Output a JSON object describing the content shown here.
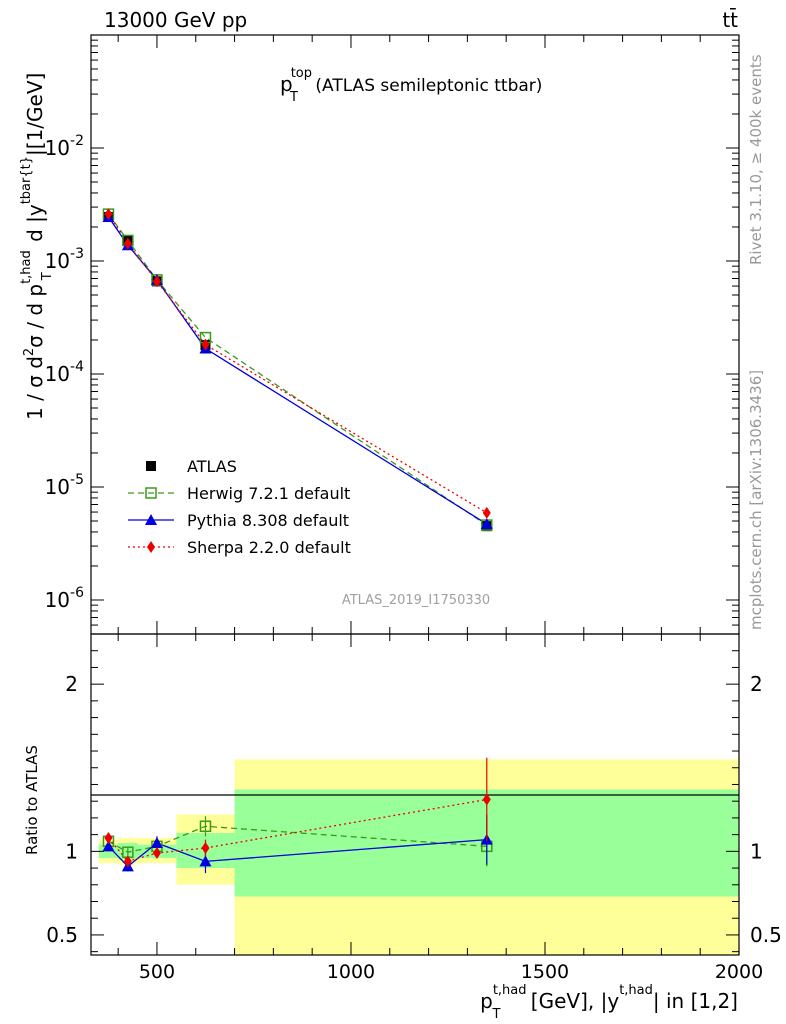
{
  "header": {
    "left": "13000 GeV pp",
    "right": "tt̄"
  },
  "side_labels": {
    "rivet": "Rivet 3.1.10, ≥ 400k events",
    "mcplots": "mcplots.cern.ch [arXiv:1306.3436]"
  },
  "analysis_id": "ATLAS_2019_I1750330",
  "chart_data": [
    {
      "type": "scatter",
      "panel": "main",
      "title": "p_T^top (ATLAS semileptonic ttbar)",
      "title_parts": {
        "base": "p",
        "sub": "T",
        "sup": "top",
        "rest": " (ATLAS semileptonic ttbar)"
      },
      "ylabel": "1 / σ d²σ / d p_T^{t,had} d |y^{tbar{t}}|[1/GeV]",
      "yscale": "log",
      "ylim": [
        5e-07,
        0.1
      ],
      "yticks": [
        {
          "value": 0.01,
          "base": "10",
          "exp": "-2"
        },
        {
          "value": 0.001,
          "base": "10",
          "exp": "-3"
        },
        {
          "value": 0.0001,
          "base": "10",
          "exp": "-4"
        },
        {
          "value": 1e-05,
          "base": "10",
          "exp": "-5"
        },
        {
          "value": 1e-06,
          "base": "10",
          "exp": "-6"
        }
      ],
      "xlim": [
        330,
        2000
      ],
      "legend_position": "lower-left",
      "series": [
        {
          "name": "ATLAS",
          "color": "#000000",
          "marker": "square-filled",
          "line": "none",
          "x": [
            375,
            425,
            500,
            625,
            1350
          ],
          "y": [
            0.00245,
            0.00152,
            0.00066,
            0.00018,
            4.5e-06
          ]
        },
        {
          "name": "Herwig 7.2.1 default",
          "color": "#3a9a1a",
          "marker": "square-open",
          "line": "dashed",
          "x": [
            375,
            425,
            500,
            625,
            1350
          ],
          "y": [
            0.0026,
            0.00152,
            0.00068,
            0.00021,
            4.6e-06
          ]
        },
        {
          "name": "Pythia 8.308 default",
          "color": "#0000dd",
          "marker": "triangle",
          "line": "solid",
          "x": [
            375,
            425,
            500,
            625,
            1350
          ],
          "y": [
            0.00245,
            0.00138,
            0.00068,
            0.000168,
            4.7e-06
          ]
        },
        {
          "name": "Sherpa 2.2.0 default",
          "color": "#ee0000",
          "marker": "diamond",
          "line": "dotted",
          "x": [
            375,
            425,
            500,
            625,
            1350
          ],
          "y": [
            0.0026,
            0.00143,
            0.00066,
            0.000182,
            5.9e-06
          ]
        }
      ]
    },
    {
      "type": "line",
      "panel": "ratio",
      "ylabel": "Ratio to ATLAS",
      "xlabel": "p_T^{t,had} [GeV], |y^{t,had}| in [1,2]",
      "xlabel_parts": {
        "p": "p",
        "sub": "T",
        "sup1": "t,had",
        "mid": " [GeV], |y",
        "sup2": "t,had",
        "end": "| in [1,2]"
      },
      "ylim": [
        0.38,
        2.3
      ],
      "yticks": [
        0.5,
        1,
        2
      ],
      "xticks": [
        500,
        1000,
        1500,
        2000
      ],
      "xlim": [
        330,
        2000
      ],
      "reference": 1,
      "bands": [
        {
          "x0": 350,
          "x1": 400,
          "green": [
            0.96,
            1.04
          ],
          "yellow": [
            0.93,
            1.07
          ]
        },
        {
          "x0": 400,
          "x1": 450,
          "green": [
            0.95,
            1.05
          ],
          "yellow": [
            0.92,
            1.08
          ]
        },
        {
          "x0": 450,
          "x1": 550,
          "green": [
            0.96,
            1.04
          ],
          "yellow": [
            0.93,
            1.08
          ]
        },
        {
          "x0": 550,
          "x1": 700,
          "green": [
            0.9,
            1.11
          ],
          "yellow": [
            0.8,
            1.22
          ]
        },
        {
          "x0": 700,
          "x1": 2000,
          "green": [
            0.73,
            1.37
          ],
          "yellow": [
            0.35,
            1.55
          ]
        }
      ],
      "series": [
        {
          "name": "Herwig 7.2.1 default",
          "color": "#3a9a1a",
          "marker": "square-open",
          "line": "dashed",
          "x": [
            375,
            425,
            500,
            625,
            1350
          ],
          "y": [
            1.06,
            0.995,
            1.03,
            1.15,
            1.03
          ],
          "err": [
            0.03,
            0.03,
            0.03,
            0.06,
            0.12
          ]
        },
        {
          "name": "Pythia 8.308 default",
          "color": "#0000dd",
          "marker": "triangle",
          "line": "solid",
          "x": [
            375,
            425,
            500,
            625,
            1350
          ],
          "y": [
            1.03,
            0.91,
            1.05,
            0.94,
            1.07
          ],
          "err": [
            0.03,
            0.03,
            0.04,
            0.07,
            0.15
          ]
        },
        {
          "name": "Sherpa 2.2.0 default",
          "color": "#ee0000",
          "marker": "diamond",
          "line": "dotted",
          "x": [
            375,
            425,
            500,
            625,
            1350
          ],
          "y": [
            1.08,
            0.94,
            0.99,
            1.02,
            1.31
          ],
          "err": [
            0.03,
            0.03,
            0.03,
            0.05,
            0.25
          ]
        }
      ]
    }
  ]
}
